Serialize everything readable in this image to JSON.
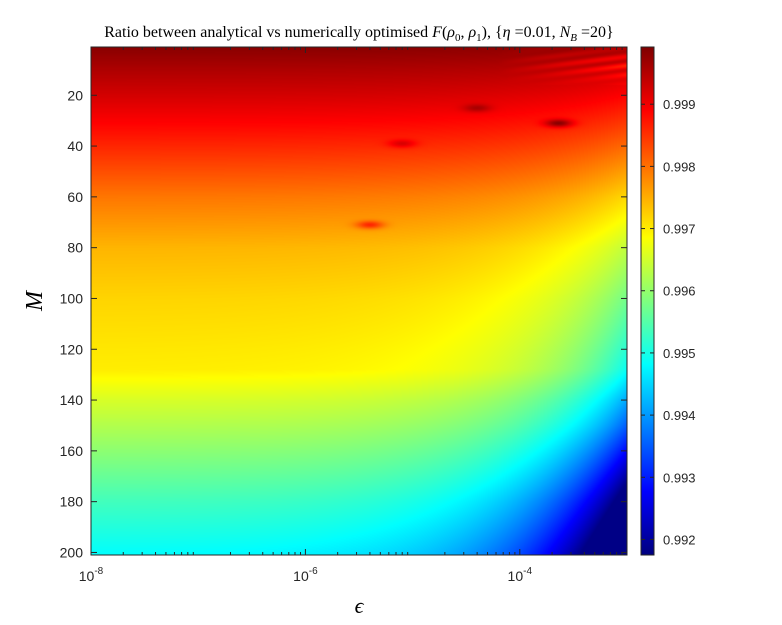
{
  "chart_data": {
    "type": "heatmap",
    "title": "Ratio between analytical vs numerically optimised F(ρ₀, ρ₁), {η =0.01, N_B =20}",
    "title_parts": {
      "prefix": "Ratio between analytical vs numerically optimised ",
      "func": "F",
      "arg_open": "(",
      "rho0_base": "ρ",
      "rho0_sub": "0",
      "comma": ", ",
      "rho1_base": "ρ",
      "rho1_sub": "1",
      "arg_close": ")",
      "brace_open": ", {",
      "eta": "η",
      "eta_value": " =0.01, ",
      "nb_base": "N",
      "nb_sub": "B",
      "nb_value": " =20}"
    },
    "xlabel": "ϵ",
    "ylabel": "M",
    "x_scale": "log",
    "xlim": [
      1e-08,
      0.001
    ],
    "ylim": [
      1,
      201
    ],
    "y_direction": "reversed",
    "x_ticks": [
      {
        "value": 1e-08,
        "base": "10",
        "exp": "-8"
      },
      {
        "value": 1e-06,
        "base": "10",
        "exp": "-6"
      },
      {
        "value": 0.0001,
        "base": "10",
        "exp": "-4"
      }
    ],
    "y_ticks": [
      {
        "value": 20,
        "label": "20"
      },
      {
        "value": 40,
        "label": "40"
      },
      {
        "value": 60,
        "label": "60"
      },
      {
        "value": 80,
        "label": "80"
      },
      {
        "value": 100,
        "label": "100"
      },
      {
        "value": 120,
        "label": "120"
      },
      {
        "value": 140,
        "label": "140"
      },
      {
        "value": 160,
        "label": "160"
      },
      {
        "value": 180,
        "label": "180"
      },
      {
        "value": 200,
        "label": "200"
      }
    ],
    "colorbar": {
      "colormap": "jet",
      "clim": [
        0.99175,
        0.99992
      ],
      "ticks": [
        {
          "value": 0.992,
          "label": "0.992"
        },
        {
          "value": 0.993,
          "label": "0.993"
        },
        {
          "value": 0.994,
          "label": "0.994"
        },
        {
          "value": 0.995,
          "label": "0.995"
        },
        {
          "value": 0.996,
          "label": "0.996"
        },
        {
          "value": 0.997,
          "label": "0.997"
        },
        {
          "value": 0.998,
          "label": "0.998"
        },
        {
          "value": 0.999,
          "label": "0.999"
        }
      ]
    },
    "profile_at_small_epsilon": [
      {
        "M": 1,
        "value": 0.99985
      },
      {
        "M": 10,
        "value": 0.99955
      },
      {
        "M": 20,
        "value": 0.99925
      },
      {
        "M": 40,
        "value": 0.9986
      },
      {
        "M": 60,
        "value": 0.99795
      },
      {
        "M": 80,
        "value": 0.99745
      },
      {
        "M": 100,
        "value": 0.9972
      },
      {
        "M": 120,
        "value": 0.99705
      },
      {
        "M": 128,
        "value": 0.997
      },
      {
        "M": 140,
        "value": 0.99655
      },
      {
        "M": 160,
        "value": 0.99595
      },
      {
        "M": 180,
        "value": 0.99535
      },
      {
        "M": 200,
        "value": 0.99485
      }
    ],
    "right_edge_min": 0.9918,
    "notes_features": [
      {
        "epsilon": 4e-06,
        "M": 71,
        "value": 0.9986
      },
      {
        "epsilon": 8e-06,
        "M": 39,
        "value": 0.9992
      },
      {
        "epsilon": 4e-05,
        "M": 25,
        "value": 0.9996
      },
      {
        "epsilon": 0.00023,
        "M": 31,
        "value": 0.99985
      }
    ],
    "grid": false
  }
}
